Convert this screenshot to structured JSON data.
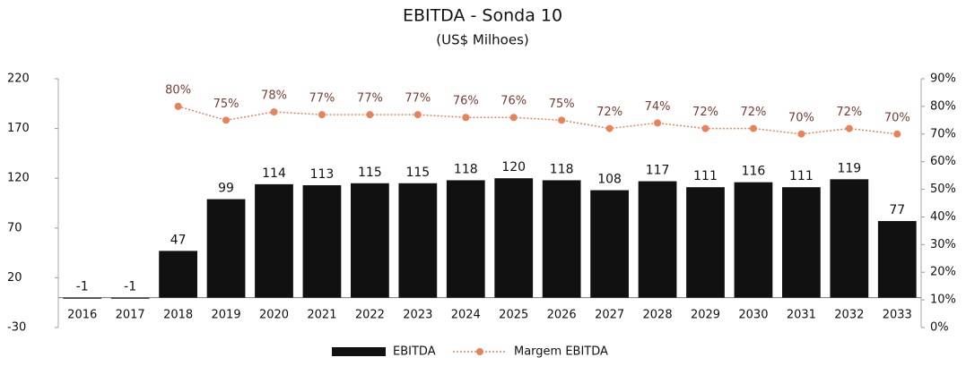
{
  "chart_data": {
    "type": "bar_line",
    "title": "EBITDA - Sonda 10",
    "subtitle": "(US$ Milhoes)",
    "categories": [
      "2016",
      "2017",
      "2018",
      "2019",
      "2020",
      "2021",
      "2022",
      "2023",
      "2024",
      "2025",
      "2026",
      "2027",
      "2028",
      "2029",
      "2030",
      "2031",
      "2032",
      "2033"
    ],
    "series": [
      {
        "name": "EBITDA",
        "type": "bar",
        "color": "#111111",
        "values": [
          -1,
          -1,
          47,
          99,
          114,
          113,
          115,
          115,
          118,
          120,
          118,
          108,
          117,
          111,
          116,
          111,
          119,
          77
        ]
      },
      {
        "name": "Margem EBITDA",
        "type": "line",
        "axis": "y2",
        "color": "#e8825a",
        "values": [
          null,
          null,
          80,
          75,
          78,
          77,
          77,
          77,
          76,
          76,
          75,
          72,
          74,
          72,
          72,
          70,
          72,
          70
        ],
        "value_labels": [
          null,
          null,
          "80%",
          "75%",
          "78%",
          "77%",
          "77%",
          "77%",
          "76%",
          "76%",
          "75%",
          "72%",
          "74%",
          "72%",
          "72%",
          "70%",
          "72%",
          "70%"
        ]
      }
    ],
    "ylim": [
      -30,
      220
    ],
    "yticks": [
      -30,
      20,
      70,
      120,
      170,
      220
    ],
    "y2lim": [
      0,
      90
    ],
    "y2ticks": [
      {
        "value": 0,
        "label": "0%"
      },
      {
        "value": 10,
        "label": "10%"
      },
      {
        "value": 20,
        "label": "20%"
      },
      {
        "value": 30,
        "label": "30%"
      },
      {
        "value": 40,
        "label": "40%"
      },
      {
        "value": 50,
        "label": "50%"
      },
      {
        "value": 60,
        "label": "60%"
      },
      {
        "value": 70,
        "label": "70%"
      },
      {
        "value": 80,
        "label": "80%"
      },
      {
        "value": 90,
        "label": "90%"
      }
    ],
    "grid": false,
    "legend": "bottom"
  }
}
